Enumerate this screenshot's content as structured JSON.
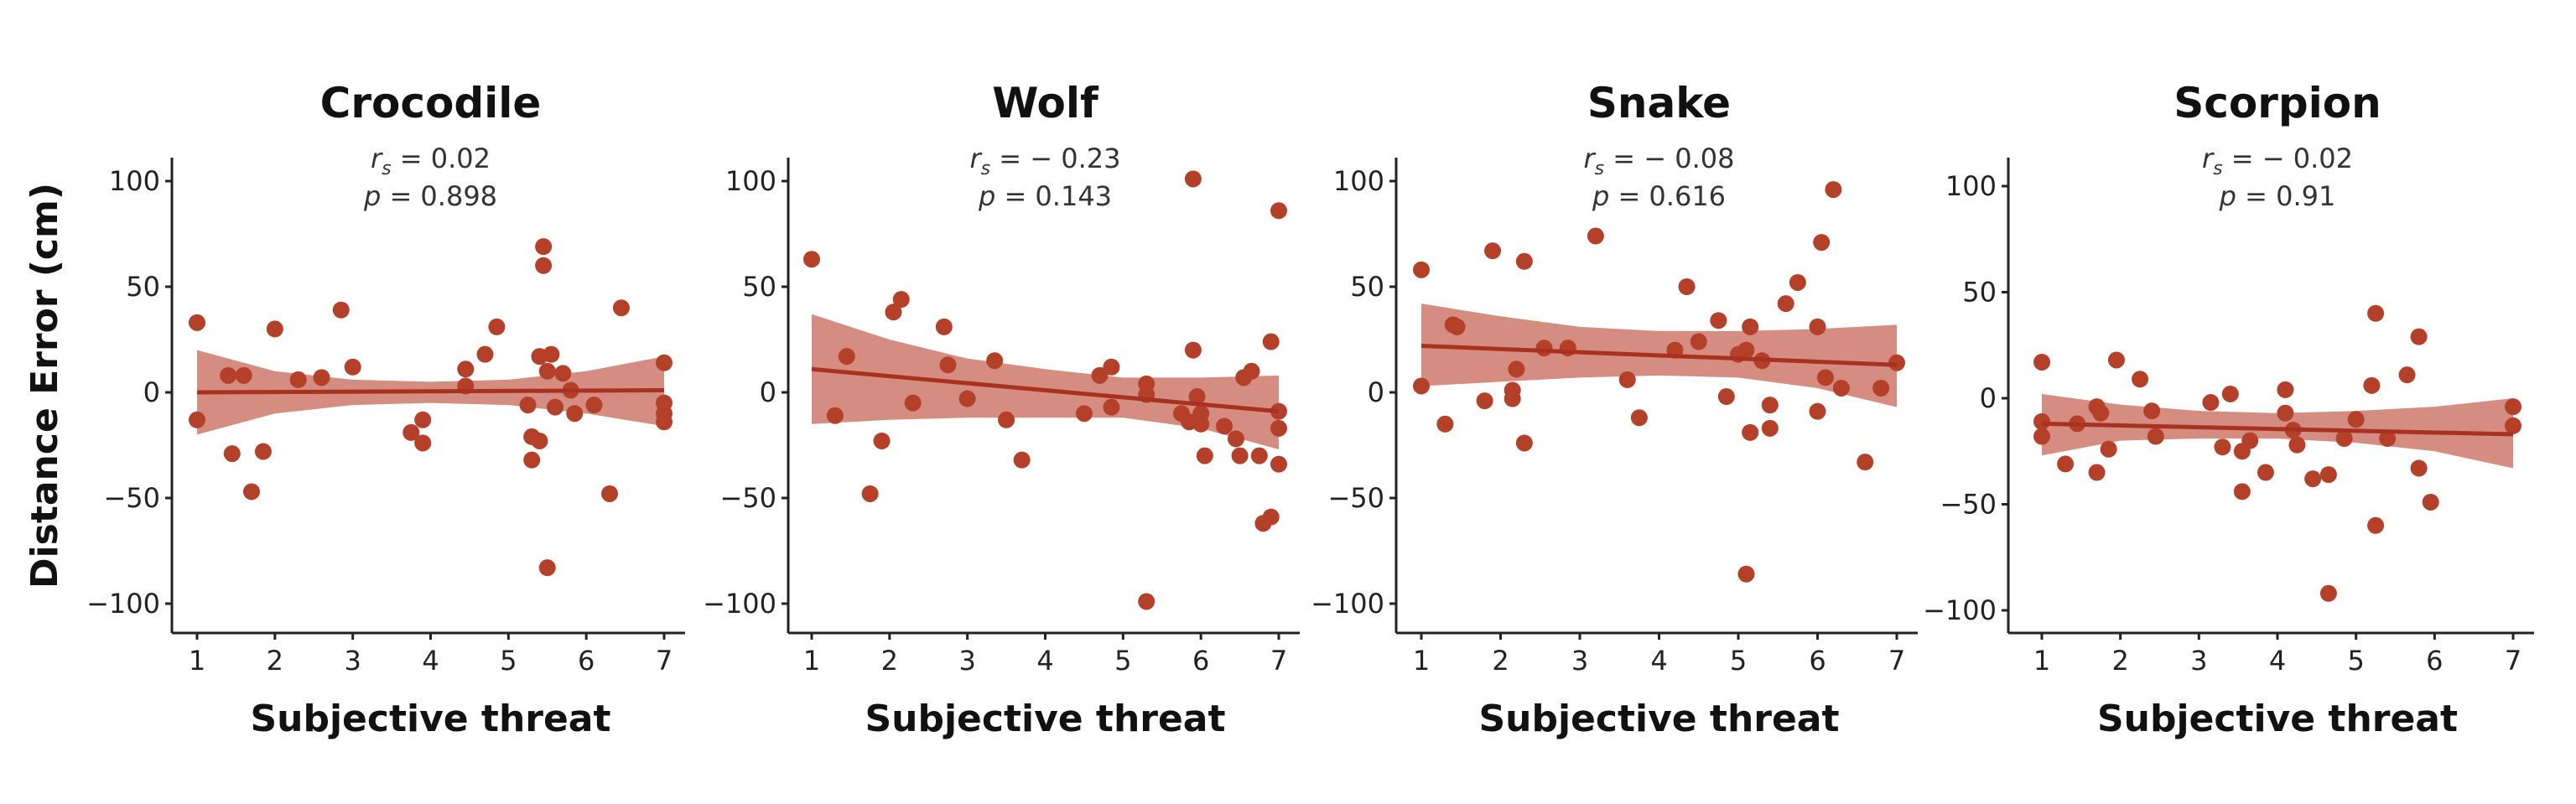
{
  "colors": {
    "point": "#b5402a",
    "line": "#a8321f",
    "band": "#c0503e",
    "axis": "#222222"
  },
  "ylabel": "Distance Error (cm)",
  "chart_data": [
    {
      "type": "scatter",
      "title": "Crocodile",
      "xlabel": "Subjective threat",
      "rs_text": "= 0.02",
      "p_text": "= 0.898",
      "xlim": [
        1,
        7
      ],
      "ylim": [
        -110,
        110
      ],
      "xticks": [
        1,
        2,
        3,
        4,
        5,
        6,
        7
      ],
      "yticks": [
        -100,
        -50,
        0,
        50,
        100
      ],
      "fit": {
        "y_start": 0,
        "y_end": 1
      },
      "band": {
        "upper": [
          20,
          10,
          6,
          5,
          6,
          10,
          17
        ],
        "lower": [
          -20,
          -10,
          -6,
          -5,
          -6,
          -10,
          -16
        ]
      },
      "points": [
        [
          1.0,
          33
        ],
        [
          1.0,
          -13
        ],
        [
          1.4,
          8
        ],
        [
          1.45,
          -29
        ],
        [
          1.6,
          8
        ],
        [
          1.7,
          -47
        ],
        [
          1.85,
          -28
        ],
        [
          2.0,
          30
        ],
        [
          2.3,
          6
        ],
        [
          2.6,
          7
        ],
        [
          2.85,
          39
        ],
        [
          3.0,
          12
        ],
        [
          3.75,
          -19
        ],
        [
          3.9,
          -13
        ],
        [
          3.9,
          -24
        ],
        [
          4.45,
          11
        ],
        [
          4.45,
          3
        ],
        [
          4.7,
          18
        ],
        [
          4.85,
          31
        ],
        [
          5.25,
          -6
        ],
        [
          5.3,
          -21
        ],
        [
          5.3,
          -32
        ],
        [
          5.4,
          17
        ],
        [
          5.4,
          -23
        ],
        [
          5.45,
          69
        ],
        [
          5.45,
          60
        ],
        [
          5.5,
          10
        ],
        [
          5.5,
          -83
        ],
        [
          5.55,
          18
        ],
        [
          5.6,
          -7
        ],
        [
          5.7,
          9
        ],
        [
          5.8,
          1
        ],
        [
          5.85,
          -10
        ],
        [
          6.1,
          -6
        ],
        [
          6.3,
          -48
        ],
        [
          6.45,
          40
        ],
        [
          7.0,
          14
        ],
        [
          7.0,
          -5
        ],
        [
          7.0,
          -10
        ],
        [
          7.0,
          -14
        ]
      ]
    },
    {
      "type": "scatter",
      "title": "Wolf",
      "xlabel": "Subjective threat",
      "rs_text": "= − 0.23",
      "p_text": "= 0.143",
      "xlim": [
        1,
        7
      ],
      "ylim": [
        -110,
        110
      ],
      "xticks": [
        1,
        2,
        3,
        4,
        5,
        6,
        7
      ],
      "yticks": [
        -100,
        -50,
        0,
        50,
        100
      ],
      "fit": {
        "y_start": 11,
        "y_end": -9
      },
      "band": {
        "upper": [
          37,
          25,
          16,
          11,
          7,
          7,
          8
        ],
        "lower": [
          -15,
          -13,
          -12,
          -12,
          -12,
          -17,
          -27
        ]
      },
      "points": [
        [
          1.0,
          63
        ],
        [
          1.3,
          -11
        ],
        [
          1.45,
          17
        ],
        [
          1.75,
          -48
        ],
        [
          1.9,
          -23
        ],
        [
          2.05,
          38
        ],
        [
          2.15,
          44
        ],
        [
          2.3,
          -5
        ],
        [
          2.7,
          31
        ],
        [
          2.75,
          13
        ],
        [
          3.0,
          -3
        ],
        [
          3.35,
          15
        ],
        [
          3.5,
          -13
        ],
        [
          3.7,
          -32
        ],
        [
          4.5,
          -10
        ],
        [
          4.7,
          8
        ],
        [
          4.85,
          -7
        ],
        [
          4.85,
          12
        ],
        [
          5.3,
          4
        ],
        [
          5.3,
          -1
        ],
        [
          5.3,
          -99
        ],
        [
          5.75,
          -10
        ],
        [
          5.85,
          -14
        ],
        [
          5.9,
          101
        ],
        [
          5.9,
          20
        ],
        [
          5.95,
          -2
        ],
        [
          6.0,
          -10
        ],
        [
          6.0,
          -15
        ],
        [
          6.05,
          -30
        ],
        [
          6.3,
          -16
        ],
        [
          6.45,
          -22
        ],
        [
          6.5,
          -30
        ],
        [
          6.55,
          7
        ],
        [
          6.65,
          10
        ],
        [
          6.75,
          -30
        ],
        [
          6.8,
          -62
        ],
        [
          6.9,
          24
        ],
        [
          6.9,
          -59
        ],
        [
          7.0,
          -9
        ],
        [
          7.0,
          -17
        ],
        [
          7.0,
          -34
        ],
        [
          7.0,
          86
        ]
      ]
    },
    {
      "type": "scatter",
      "title": "Snake",
      "xlabel": "Subjective threat",
      "rs_text": "= − 0.08",
      "p_text": "= 0.616",
      "xlim": [
        1,
        7
      ],
      "ylim": [
        -110,
        110
      ],
      "xticks": [
        1,
        2,
        3,
        4,
        5,
        6,
        7
      ],
      "yticks": [
        -100,
        -50,
        0,
        50,
        100
      ],
      "fit": {
        "y_start": 22,
        "y_end": 13
      },
      "band": {
        "upper": [
          42,
          36,
          31,
          29,
          29,
          30,
          32
        ],
        "lower": [
          3,
          5,
          7,
          8,
          7,
          2,
          -7
        ]
      },
      "points": [
        [
          1.0,
          58
        ],
        [
          1.0,
          3
        ],
        [
          1.3,
          -15
        ],
        [
          1.4,
          32
        ],
        [
          1.45,
          31
        ],
        [
          1.8,
          -4
        ],
        [
          1.9,
          67
        ],
        [
          2.15,
          1
        ],
        [
          2.15,
          -3
        ],
        [
          2.2,
          11
        ],
        [
          2.3,
          62
        ],
        [
          2.3,
          -24
        ],
        [
          2.55,
          21
        ],
        [
          2.85,
          21
        ],
        [
          3.2,
          74
        ],
        [
          3.6,
          6
        ],
        [
          3.75,
          -12
        ],
        [
          4.2,
          20
        ],
        [
          4.35,
          50
        ],
        [
          4.5,
          24
        ],
        [
          4.75,
          34
        ],
        [
          4.85,
          -2
        ],
        [
          5.0,
          18
        ],
        [
          5.1,
          -86
        ],
        [
          5.1,
          20
        ],
        [
          5.15,
          31
        ],
        [
          5.15,
          -19
        ],
        [
          5.3,
          15
        ],
        [
          5.4,
          -6
        ],
        [
          5.4,
          -17
        ],
        [
          5.6,
          42
        ],
        [
          5.75,
          52
        ],
        [
          6.0,
          31
        ],
        [
          6.0,
          -9
        ],
        [
          6.05,
          71
        ],
        [
          6.1,
          7
        ],
        [
          6.2,
          96
        ],
        [
          6.3,
          2
        ],
        [
          6.6,
          -33
        ],
        [
          6.8,
          2
        ],
        [
          7.0,
          14
        ]
      ]
    },
    {
      "type": "scatter",
      "title": "Scorpion",
      "xlabel": "Subjective threat",
      "rs_text": "= − 0.02",
      "p_text": "= 0.91",
      "xlim": [
        1,
        7
      ],
      "ylim": [
        -110,
        110
      ],
      "xticks": [
        1,
        2,
        3,
        4,
        5,
        6,
        7
      ],
      "yticks": [
        -100,
        -50,
        0,
        50,
        100
      ],
      "fit": {
        "y_start": -12,
        "y_end": -17
      },
      "band": {
        "upper": [
          2,
          -3,
          -6,
          -7,
          -6,
          -4,
          0
        ],
        "lower": [
          -27,
          -20,
          -19,
          -19,
          -21,
          -25,
          -33
        ]
      },
      "points": [
        [
          1.0,
          17
        ],
        [
          1.0,
          -11
        ],
        [
          1.0,
          -18
        ],
        [
          1.3,
          -31
        ],
        [
          1.45,
          -12
        ],
        [
          1.7,
          -35
        ],
        [
          1.7,
          -4
        ],
        [
          1.75,
          -7
        ],
        [
          1.85,
          -24
        ],
        [
          1.95,
          18
        ],
        [
          2.25,
          9
        ],
        [
          2.4,
          -6
        ],
        [
          2.45,
          -18
        ],
        [
          3.15,
          -2
        ],
        [
          3.3,
          -23
        ],
        [
          3.4,
          2
        ],
        [
          3.55,
          -25
        ],
        [
          3.55,
          -44
        ],
        [
          3.65,
          -20
        ],
        [
          3.85,
          -35
        ],
        [
          4.1,
          4
        ],
        [
          4.1,
          -7
        ],
        [
          4.2,
          -15
        ],
        [
          4.25,
          -22
        ],
        [
          4.45,
          -38
        ],
        [
          4.65,
          -36
        ],
        [
          4.65,
          -92
        ],
        [
          4.85,
          -19
        ],
        [
          5.0,
          -10
        ],
        [
          5.2,
          6
        ],
        [
          5.25,
          40
        ],
        [
          5.25,
          -60
        ],
        [
          5.4,
          -19
        ],
        [
          5.65,
          11
        ],
        [
          5.8,
          29
        ],
        [
          5.8,
          -33
        ],
        [
          5.95,
          -49
        ],
        [
          7.0,
          -4
        ],
        [
          7.0,
          -13
        ]
      ]
    }
  ]
}
